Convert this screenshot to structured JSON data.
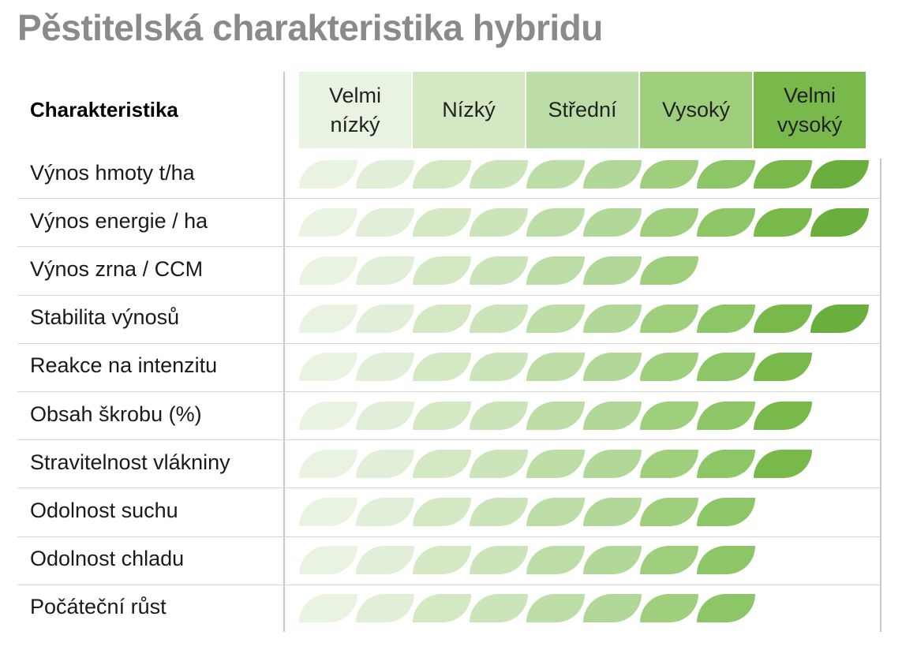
{
  "title": "Pěstitelská charakteristika hybridu",
  "column_header": "Charakteristika",
  "colors": {
    "title": "#8a8a8a",
    "level_backgrounds": [
      "#e9f3e1",
      "#d3e8c3",
      "#bcdda6",
      "#9fce7c",
      "#79b94c"
    ],
    "leaf_colors": [
      "#e9f3e1",
      "#e2efd8",
      "#d3e8c3",
      "#cbe4b9",
      "#bcdda6",
      "#b1d898",
      "#9fce7c",
      "#8dc667",
      "#79b94c",
      "#6aae3e"
    ]
  },
  "chart_data": {
    "type": "table",
    "scale_levels": [
      "Velmi\nnízký",
      "Nízký",
      "Střední",
      "Vysoký",
      "Velmi\nvysoký"
    ],
    "max_score": 10,
    "rows": [
      {
        "label": "Výnos hmoty t/ha",
        "score": 10
      },
      {
        "label": "Výnos energie / ha",
        "score": 10
      },
      {
        "label": "Výnos zrna / CCM",
        "score": 7
      },
      {
        "label": "Stabilita výnosů",
        "score": 10
      },
      {
        "label": "Reakce na intenzitu",
        "score": 9
      },
      {
        "label": "Obsah škrobu (%)",
        "score": 9
      },
      {
        "label": "Stravitelnost vlákniny",
        "score": 9
      },
      {
        "label": "Odolnost suchu",
        "score": 8
      },
      {
        "label": "Odolnost chladu",
        "score": 8
      },
      {
        "label": "Počáteční růst",
        "score": 8
      }
    ]
  }
}
